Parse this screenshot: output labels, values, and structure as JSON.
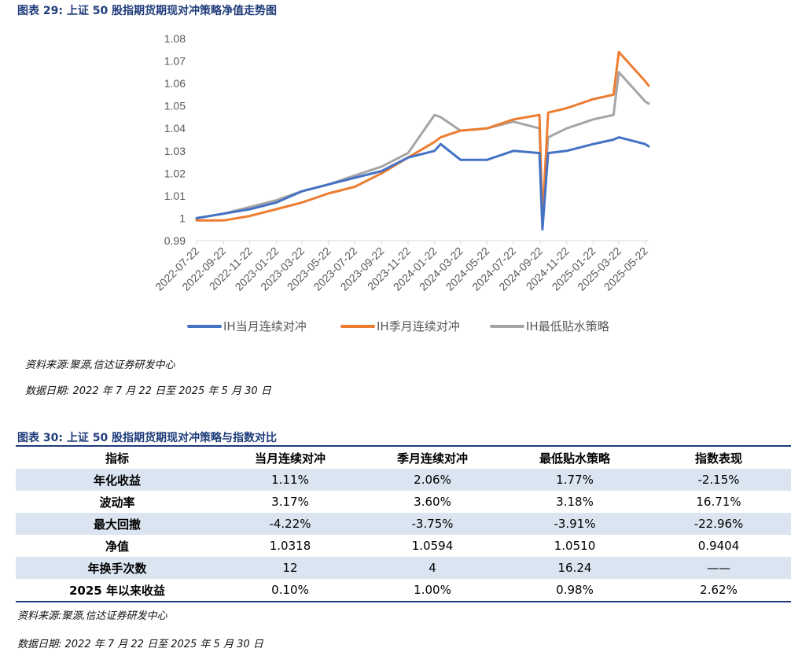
{
  "figure29": {
    "title": "图表 29:  上证 50 股指期货期现对冲策略净值走势图",
    "source": "资料来源:聚源,信达证券研发中心",
    "date_range": "数据日期: 2022 年 7 月 22 日至 2025 年 5 月 30 日"
  },
  "chart_data": {
    "type": "line",
    "title": "",
    "xlabel": "",
    "ylabel": "",
    "ylim": [
      0.99,
      1.08
    ],
    "yticks": [
      "0.99",
      "1",
      "1.01",
      "1.02",
      "1.03",
      "1.04",
      "1.05",
      "1.06",
      "1.07",
      "1.08"
    ],
    "x_tick_labels": [
      "2022-07-22",
      "2022-09-22",
      "2022-11-22",
      "2023-01-22",
      "2023-03-22",
      "2023-05-22",
      "2023-07-22",
      "2023-09-22",
      "2023-11-22",
      "2024-01-22",
      "2024-03-22",
      "2024-05-22",
      "2024-07-22",
      "2024-09-22",
      "2024-11-22",
      "2025-01-22",
      "2025-03-22",
      "2025-05-22"
    ],
    "x": [
      "2022-07-22",
      "2022-09-22",
      "2022-11-22",
      "2023-01-22",
      "2023-03-22",
      "2023-05-22",
      "2023-07-22",
      "2023-09-22",
      "2023-11-22",
      "2024-01-22",
      "2024-02-05",
      "2024-03-22",
      "2024-05-22",
      "2024-07-22",
      "2024-09-20",
      "2024-09-27",
      "2024-10-10",
      "2024-11-22",
      "2025-01-22",
      "2025-03-10",
      "2025-03-22",
      "2025-05-22",
      "2025-05-30"
    ],
    "legend_position": "bottom",
    "grid": false,
    "series": [
      {
        "name": "IH当月连续对冲",
        "color": "#4472c4",
        "values": [
          1.0,
          1.002,
          1.004,
          1.007,
          1.012,
          1.015,
          1.018,
          1.021,
          1.027,
          1.03,
          1.033,
          1.026,
          1.026,
          1.03,
          1.029,
          0.995,
          1.029,
          1.03,
          1.033,
          1.035,
          1.036,
          1.033,
          1.032
        ]
      },
      {
        "name": "IH季月连续对冲",
        "color": "#ed7d31",
        "values": [
          0.999,
          0.999,
          1.001,
          1.004,
          1.007,
          1.011,
          1.014,
          1.02,
          1.027,
          1.034,
          1.036,
          1.039,
          1.04,
          1.044,
          1.046,
          0.999,
          1.047,
          1.049,
          1.053,
          1.055,
          1.074,
          1.061,
          1.059
        ]
      },
      {
        "name": "IH最低贴水策略",
        "color": "#a5a5a5",
        "values": [
          1.0,
          1.002,
          1.005,
          1.008,
          1.012,
          1.015,
          1.019,
          1.023,
          1.029,
          1.046,
          1.045,
          1.039,
          1.04,
          1.043,
          1.04,
          1.002,
          1.036,
          1.04,
          1.044,
          1.046,
          1.065,
          1.052,
          1.051
        ]
      }
    ]
  },
  "figure30": {
    "title": "图表 30:  上证 50 股指期货期现对冲策略与指数对比",
    "columns": [
      "指标",
      "当月连续对冲",
      "季月连续对冲",
      "最低贴水策略",
      "指数表现"
    ],
    "rows": [
      [
        "年化收益",
        "1.11%",
        "2.06%",
        "1.77%",
        "-2.15%"
      ],
      [
        "波动率",
        "3.17%",
        "3.60%",
        "3.18%",
        "16.71%"
      ],
      [
        "最大回撤",
        "-4.22%",
        "-3.75%",
        "-3.91%",
        "-22.96%"
      ],
      [
        "净值",
        "1.0318",
        "1.0594",
        "1.0510",
        "0.9404"
      ],
      [
        "年换手次数",
        "12",
        "4",
        "16.24",
        "——"
      ],
      [
        "2025 年以来收益",
        "0.10%",
        "1.00%",
        "0.98%",
        "2.62%"
      ]
    ],
    "source": "资料来源:聚源,信达证券研发中心",
    "date_range": "数据日期: 2022 年 7 月 22 日至 2025 年 5 月 30 日"
  }
}
